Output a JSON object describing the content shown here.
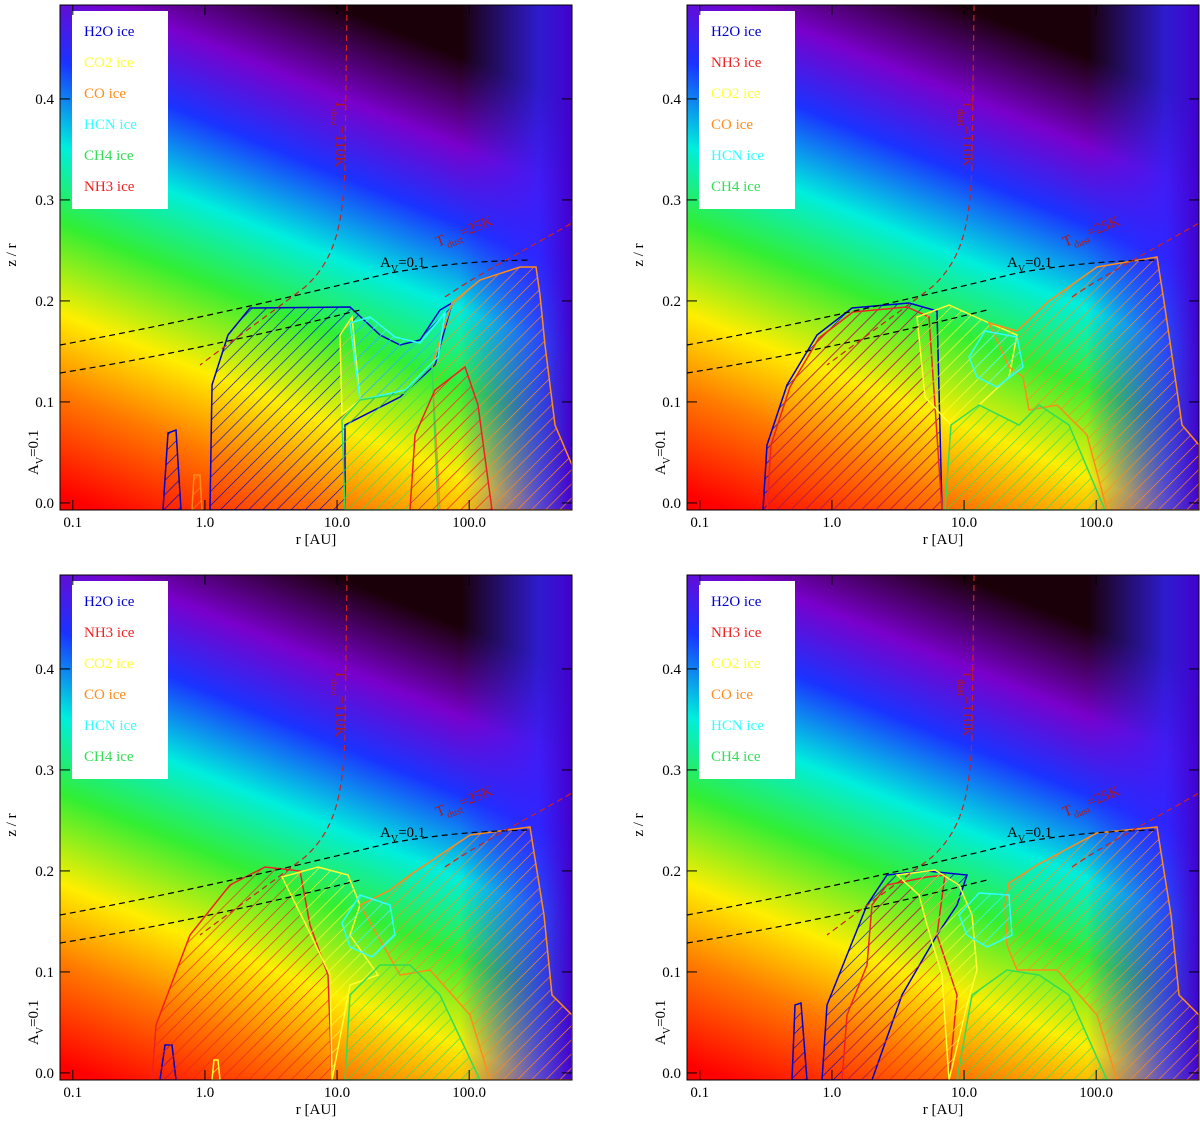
{
  "chart_data": [
    {
      "type": "contour",
      "xlabel": "r [AU]",
      "ylabel": "z / r",
      "xscale": "log",
      "xlim": [
        0.08,
        600
      ],
      "ylim": [
        -0.007,
        0.493
      ],
      "xticks": [
        0.1,
        {
          "value": 1,
          "label": "1.0"
        },
        {
          "value": 10,
          "label": "10.0"
        },
        {
          "value": 100,
          "label": "100.0"
        }
      ],
      "yticks": [
        {
          "value": 0,
          "label": "0.0"
        },
        0.1,
        0.2,
        0.3,
        0.4
      ],
      "series": [
        {
          "name": "H2O ice",
          "color": "#0000cc"
        },
        {
          "name": "CO2 ice",
          "color": "#ffff33"
        },
        {
          "name": "CO ice",
          "color": "#ff8c1a"
        },
        {
          "name": "HCN ice",
          "color": "#33ffff"
        },
        {
          "name": "CH4 ice",
          "color": "#33dd55"
        },
        {
          "name": "NH3 ice",
          "color": "#ee2222"
        }
      ],
      "annotations": [
        {
          "text": "A",
          "sub": "V",
          "rest": "=0.1"
        },
        {
          "text": "T",
          "sub": "dust",
          "rest": "=25K"
        },
        {
          "text": "T",
          "sub": "dust",
          "rest": "=110K"
        },
        {
          "text": "A",
          "sub": "V",
          "rest": "=0.1"
        }
      ]
    },
    {
      "type": "contour",
      "xlabel": "r [AU]",
      "ylabel": "z / r",
      "xscale": "log",
      "xlim": [
        0.08,
        600
      ],
      "ylim": [
        -0.007,
        0.493
      ],
      "xticks": [
        0.1,
        {
          "value": 1,
          "label": "1.0"
        },
        {
          "value": 10,
          "label": "10.0"
        },
        {
          "value": 100,
          "label": "100.0"
        }
      ],
      "yticks": [
        {
          "value": 0,
          "label": "0.0"
        },
        0.1,
        0.2,
        0.3,
        0.4
      ],
      "series": [
        {
          "name": "H2O ice",
          "color": "#0000cc"
        },
        {
          "name": "NH3 ice",
          "color": "#ee2222"
        },
        {
          "name": "CO2 ice",
          "color": "#ffff33"
        },
        {
          "name": "CO ice",
          "color": "#ff8c1a"
        },
        {
          "name": "HCN ice",
          "color": "#33ffff"
        },
        {
          "name": "CH4 ice",
          "color": "#33dd55"
        }
      ],
      "annotations": [
        {
          "text": "A",
          "sub": "V",
          "rest": "=0.1"
        },
        {
          "text": "T",
          "sub": "dust",
          "rest": "=25K"
        },
        {
          "text": "T",
          "sub": "dust",
          "rest": "=110K"
        },
        {
          "text": "A",
          "sub": "V",
          "rest": "=0.1"
        }
      ]
    },
    {
      "type": "contour",
      "xlabel": "r [AU]",
      "ylabel": "z / r",
      "xscale": "log",
      "xlim": [
        0.08,
        600
      ],
      "ylim": [
        -0.007,
        0.493
      ],
      "xticks": [
        0.1,
        {
          "value": 1,
          "label": "1.0"
        },
        {
          "value": 10,
          "label": "10.0"
        },
        {
          "value": 100,
          "label": "100.0"
        }
      ],
      "yticks": [
        {
          "value": 0,
          "label": "0.0"
        },
        0.1,
        0.2,
        0.3,
        0.4
      ],
      "series": [
        {
          "name": "H2O ice",
          "color": "#0000cc"
        },
        {
          "name": "NH3 ice",
          "color": "#ee2222"
        },
        {
          "name": "CO2 ice",
          "color": "#ffff33"
        },
        {
          "name": "CO ice",
          "color": "#ff8c1a"
        },
        {
          "name": "HCN ice",
          "color": "#33ffff"
        },
        {
          "name": "CH4 ice",
          "color": "#33dd55"
        }
      ],
      "annotations": [
        {
          "text": "A",
          "sub": "V",
          "rest": "=0.1"
        },
        {
          "text": "T",
          "sub": "dust",
          "rest": "=25K"
        },
        {
          "text": "T",
          "sub": "dust",
          "rest": "=110K"
        },
        {
          "text": "A",
          "sub": "V",
          "rest": "=0.1"
        }
      ]
    },
    {
      "type": "contour",
      "xlabel": "r [AU]",
      "ylabel": "z / r",
      "xscale": "log",
      "xlim": [
        0.08,
        600
      ],
      "ylim": [
        -0.007,
        0.493
      ],
      "xticks": [
        0.1,
        {
          "value": 1,
          "label": "1.0"
        },
        {
          "value": 10,
          "label": "10.0"
        },
        {
          "value": 100,
          "label": "100.0"
        }
      ],
      "yticks": [
        {
          "value": 0,
          "label": "0.0"
        },
        0.1,
        0.2,
        0.3,
        0.4
      ],
      "series": [
        {
          "name": "H2O ice",
          "color": "#0000cc"
        },
        {
          "name": "NH3 ice",
          "color": "#ee2222"
        },
        {
          "name": "CO2 ice",
          "color": "#ffff33"
        },
        {
          "name": "CO ice",
          "color": "#ff8c1a"
        },
        {
          "name": "HCN ice",
          "color": "#33ffff"
        },
        {
          "name": "CH4 ice",
          "color": "#33dd55"
        }
      ],
      "annotations": [
        {
          "text": "A",
          "sub": "V",
          "rest": "=0.1"
        },
        {
          "text": "T",
          "sub": "dust",
          "rest": "=25K"
        },
        {
          "text": "T",
          "sub": "dust",
          "rest": "=110K"
        },
        {
          "text": "A",
          "sub": "V",
          "rest": "=0.1"
        }
      ]
    }
  ]
}
